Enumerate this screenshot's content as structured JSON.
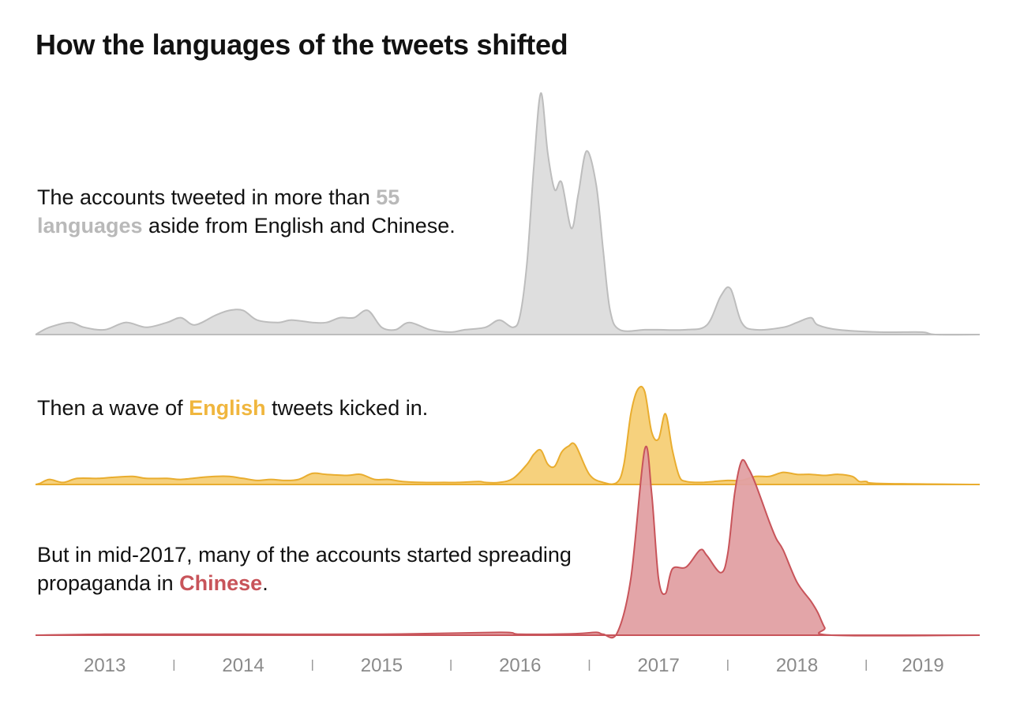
{
  "title": "How the languages of the tweets shifted",
  "annotations": [
    {
      "before": "The accounts tweeted in more than ",
      "highlight": "55 languages",
      "after": " aside from English and Chinese.",
      "highlight_color": "#b9b9b9"
    },
    {
      "before": "Then a wave of ",
      "highlight": "English",
      "after": " tweets kicked in.",
      "highlight_color": "#f0b63e"
    },
    {
      "before": "But in mid-2017, many of the accounts started spreading propaganda in ",
      "highlight": "Chinese",
      "after": ".",
      "highlight_color": "#c8545a"
    }
  ],
  "chart_data": {
    "type": "area",
    "chart_style": "ridgeline",
    "x_unit": "year",
    "xlim": [
      2012.5,
      2019.32
    ],
    "x_ticks": [
      "2013",
      "2014",
      "2015",
      "2016",
      "2017",
      "2018",
      "2019"
    ],
    "y_unit": "relative tweet volume (share of each series' peak)",
    "grid": false,
    "legend": "none",
    "series": [
      {
        "name": "55 languages",
        "fill": "#dcdcdc",
        "stroke": "#bdbdbd",
        "points": [
          [
            2012.5,
            0
          ],
          [
            2012.6,
            0.03
          ],
          [
            2012.75,
            0.05
          ],
          [
            2012.85,
            0.03
          ],
          [
            2013.0,
            0.02
          ],
          [
            2013.15,
            0.05
          ],
          [
            2013.3,
            0.03
          ],
          [
            2013.45,
            0.05
          ],
          [
            2013.55,
            0.07
          ],
          [
            2013.65,
            0.04
          ],
          [
            2013.8,
            0.08
          ],
          [
            2013.9,
            0.1
          ],
          [
            2014.0,
            0.1
          ],
          [
            2014.1,
            0.06
          ],
          [
            2014.25,
            0.05
          ],
          [
            2014.35,
            0.06
          ],
          [
            2014.5,
            0.05
          ],
          [
            2014.6,
            0.05
          ],
          [
            2014.7,
            0.07
          ],
          [
            2014.8,
            0.07
          ],
          [
            2014.9,
            0.1
          ],
          [
            2015.0,
            0.03
          ],
          [
            2015.1,
            0.02
          ],
          [
            2015.2,
            0.05
          ],
          [
            2015.35,
            0.02
          ],
          [
            2015.5,
            0.01
          ],
          [
            2015.6,
            0.02
          ],
          [
            2015.75,
            0.03
          ],
          [
            2015.85,
            0.06
          ],
          [
            2015.95,
            0.03
          ],
          [
            2016.0,
            0.08
          ],
          [
            2016.05,
            0.3
          ],
          [
            2016.1,
            0.7
          ],
          [
            2016.15,
            1.0
          ],
          [
            2016.2,
            0.75
          ],
          [
            2016.25,
            0.6
          ],
          [
            2016.3,
            0.63
          ],
          [
            2016.37,
            0.44
          ],
          [
            2016.42,
            0.58
          ],
          [
            2016.48,
            0.76
          ],
          [
            2016.55,
            0.62
          ],
          [
            2016.6,
            0.35
          ],
          [
            2016.65,
            0.1
          ],
          [
            2016.72,
            0.02
          ],
          [
            2016.9,
            0.02
          ],
          [
            2017.0,
            0.02
          ],
          [
            2017.2,
            0.02
          ],
          [
            2017.35,
            0.04
          ],
          [
            2017.45,
            0.16
          ],
          [
            2017.52,
            0.19
          ],
          [
            2017.6,
            0.05
          ],
          [
            2017.7,
            0.02
          ],
          [
            2017.9,
            0.03
          ],
          [
            2018.0,
            0.05
          ],
          [
            2018.1,
            0.07
          ],
          [
            2018.15,
            0.04
          ],
          [
            2018.3,
            0.02
          ],
          [
            2018.6,
            0.01
          ],
          [
            2018.9,
            0.01
          ],
          [
            2019.0,
            0.0
          ],
          [
            2019.32,
            0
          ]
        ]
      },
      {
        "name": "English",
        "fill": "#f6cf76",
        "stroke": "#e9ad2f",
        "points": [
          [
            2012.5,
            0
          ],
          [
            2012.53,
            0.01
          ],
          [
            2012.6,
            0.05
          ],
          [
            2012.7,
            0.02
          ],
          [
            2012.8,
            0.06
          ],
          [
            2012.95,
            0.06
          ],
          [
            2013.05,
            0.07
          ],
          [
            2013.2,
            0.08
          ],
          [
            2013.3,
            0.06
          ],
          [
            2013.45,
            0.06
          ],
          [
            2013.55,
            0.05
          ],
          [
            2013.7,
            0.07
          ],
          [
            2013.8,
            0.08
          ],
          [
            2013.9,
            0.08
          ],
          [
            2014.0,
            0.06
          ],
          [
            2014.1,
            0.04
          ],
          [
            2014.2,
            0.05
          ],
          [
            2014.3,
            0.04
          ],
          [
            2014.4,
            0.05
          ],
          [
            2014.5,
            0.11
          ],
          [
            2014.6,
            0.1
          ],
          [
            2014.75,
            0.09
          ],
          [
            2014.85,
            0.1
          ],
          [
            2014.95,
            0.05
          ],
          [
            2015.05,
            0.05
          ],
          [
            2015.15,
            0.03
          ],
          [
            2015.3,
            0.02
          ],
          [
            2015.45,
            0.02
          ],
          [
            2015.55,
            0.02
          ],
          [
            2015.7,
            0.03
          ],
          [
            2015.75,
            0.02
          ],
          [
            2015.85,
            0.02
          ],
          [
            2015.95,
            0.06
          ],
          [
            2016.05,
            0.2
          ],
          [
            2016.1,
            0.3
          ],
          [
            2016.15,
            0.34
          ],
          [
            2016.2,
            0.2
          ],
          [
            2016.25,
            0.18
          ],
          [
            2016.3,
            0.32
          ],
          [
            2016.35,
            0.38
          ],
          [
            2016.4,
            0.39
          ],
          [
            2016.5,
            0.1
          ],
          [
            2016.6,
            0.02
          ],
          [
            2016.7,
            0.02
          ],
          [
            2016.75,
            0.2
          ],
          [
            2016.8,
            0.7
          ],
          [
            2016.85,
            0.94
          ],
          [
            2016.9,
            0.92
          ],
          [
            2016.95,
            0.52
          ],
          [
            2017.0,
            0.45
          ],
          [
            2017.05,
            0.7
          ],
          [
            2017.1,
            0.34
          ],
          [
            2017.15,
            0.08
          ],
          [
            2017.2,
            0.03
          ],
          [
            2017.3,
            0.02
          ],
          [
            2017.4,
            0.03
          ],
          [
            2017.5,
            0.04
          ],
          [
            2017.6,
            0.04
          ],
          [
            2017.7,
            0.08
          ],
          [
            2017.8,
            0.08
          ],
          [
            2017.9,
            0.12
          ],
          [
            2018.0,
            0.1
          ],
          [
            2018.1,
            0.1
          ],
          [
            2018.2,
            0.09
          ],
          [
            2018.3,
            0.1
          ],
          [
            2018.4,
            0.08
          ],
          [
            2018.45,
            0.03
          ],
          [
            2018.5,
            0.03
          ],
          [
            2018.6,
            0.01
          ],
          [
            2019.32,
            0
          ]
        ]
      },
      {
        "name": "Chinese",
        "fill": "#e1a0a3",
        "stroke": "#c8545a",
        "points": [
          [
            2012.5,
            0
          ],
          [
            2013.0,
            0.005
          ],
          [
            2014.0,
            0.005
          ],
          [
            2015.0,
            0.005
          ],
          [
            2015.85,
            0.015
          ],
          [
            2016.0,
            0.005
          ],
          [
            2016.4,
            0.008
          ],
          [
            2016.55,
            0.015
          ],
          [
            2016.6,
            0.005
          ],
          [
            2016.7,
            0.01
          ],
          [
            2016.8,
            0.3
          ],
          [
            2016.9,
            0.98
          ],
          [
            2016.95,
            0.75
          ],
          [
            2017.0,
            0.3
          ],
          [
            2017.05,
            0.22
          ],
          [
            2017.1,
            0.35
          ],
          [
            2017.2,
            0.36
          ],
          [
            2017.3,
            0.45
          ],
          [
            2017.35,
            0.42
          ],
          [
            2017.45,
            0.33
          ],
          [
            2017.5,
            0.43
          ],
          [
            2017.55,
            0.75
          ],
          [
            2017.6,
            0.92
          ],
          [
            2017.65,
            0.88
          ],
          [
            2017.7,
            0.8
          ],
          [
            2017.8,
            0.6
          ],
          [
            2017.85,
            0.51
          ],
          [
            2017.9,
            0.45
          ],
          [
            2018.0,
            0.28
          ],
          [
            2018.1,
            0.18
          ],
          [
            2018.15,
            0.12
          ],
          [
            2018.2,
            0.04
          ],
          [
            2018.25,
            0.0
          ],
          [
            2019.32,
            0
          ]
        ]
      }
    ]
  }
}
